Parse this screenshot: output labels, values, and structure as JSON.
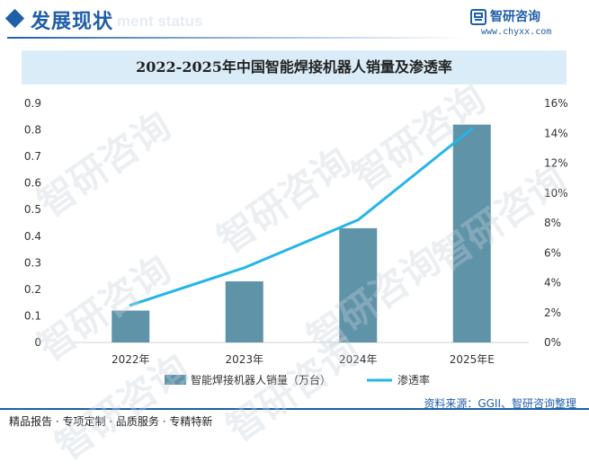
{
  "header": {
    "section_title": "发展现状",
    "section_subtitle_en": "ment status"
  },
  "brand": {
    "name": "智研咨询",
    "url": "www.chyxx.com"
  },
  "watermark_text": "智研咨询",
  "chart_data": {
    "type": "bar",
    "title": "2022-2025年中国智能焊接机器人销量及渗透率",
    "categories": [
      "2022年",
      "2023年",
      "2024年",
      "2025年E"
    ],
    "series": [
      {
        "name": "智能焊接机器人销量（万台）",
        "type": "bar",
        "axis": "left",
        "values": [
          0.12,
          0.23,
          0.43,
          0.82
        ],
        "color": "#5f93a8"
      },
      {
        "name": "渗透率",
        "type": "line",
        "axis": "right",
        "values": [
          2.5,
          5.0,
          8.2,
          14.3
        ],
        "color": "#23b5ea"
      }
    ],
    "y_left": {
      "min": 0,
      "max": 0.9,
      "ticks": [
        "0",
        "0.1",
        "0.2",
        "0.3",
        "0.4",
        "0.5",
        "0.6",
        "0.7",
        "0.8",
        "0.9"
      ]
    },
    "y_right": {
      "min": 0,
      "max": 16,
      "ticks": [
        "0%",
        "2%",
        "4%",
        "6%",
        "8%",
        "10%",
        "12%",
        "14%",
        "16%"
      ]
    },
    "grid": false,
    "legend_position": "bottom"
  },
  "source": "资料来源：GGII、智研咨询整理",
  "slogan": "精品报告 · 专项定制 · 品质服务 · 专精特新"
}
